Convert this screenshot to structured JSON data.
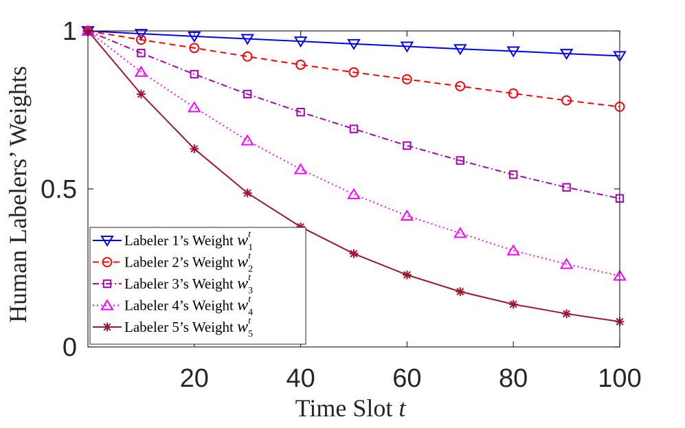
{
  "chart_data": {
    "type": "line",
    "xlabel": "Time Slot",
    "xlabel_var": "t",
    "ylabel": "Human Labelers’ Weights",
    "xlim": [
      0,
      100
    ],
    "ylim": [
      0,
      1
    ],
    "xticks": [
      20,
      40,
      60,
      80,
      100
    ],
    "xtick_labels": [
      "20",
      "40",
      "60",
      "80",
      "100"
    ],
    "yticks": [
      0,
      0.5,
      1
    ],
    "ytick_labels": [
      "0",
      "0.5",
      "1"
    ],
    "grid": false,
    "legend_position": "bottom-left",
    "x": [
      0,
      10,
      20,
      30,
      40,
      50,
      60,
      70,
      80,
      90,
      100
    ],
    "series": [
      {
        "name": "Labeler 1’s Weight",
        "symbol": "w",
        "subscript": "1",
        "superscript": "t",
        "color": "#0000ff",
        "dash": "solid",
        "marker": "triangle-down",
        "values": [
          1.0,
          0.991,
          0.983,
          0.975,
          0.967,
          0.959,
          0.951,
          0.943,
          0.936,
          0.928,
          0.921
        ]
      },
      {
        "name": "Labeler 2’s Weight",
        "symbol": "w",
        "subscript": "2",
        "superscript": "t",
        "color": "#ff0000",
        "dash": "dashed",
        "marker": "circle",
        "values": [
          1.0,
          0.972,
          0.946,
          0.919,
          0.893,
          0.869,
          0.847,
          0.825,
          0.802,
          0.78,
          0.76
        ]
      },
      {
        "name": "Labeler 3’s Weight",
        "symbol": "w",
        "subscript": "3",
        "superscript": "t",
        "color": "#b000b0",
        "dash": "dashdot",
        "marker": "square",
        "values": [
          1.0,
          0.93,
          0.863,
          0.8,
          0.743,
          0.69,
          0.637,
          0.59,
          0.545,
          0.505,
          0.47
        ]
      },
      {
        "name": "Labeler 4’s Weight",
        "symbol": "w",
        "subscript": "4",
        "superscript": "t",
        "color": "#ff00ff",
        "dash": "dotted",
        "marker": "triangle-up",
        "values": [
          1.0,
          0.87,
          0.758,
          0.653,
          0.562,
          0.483,
          0.415,
          0.36,
          0.305,
          0.262,
          0.225
        ]
      },
      {
        "name": "Labeler 5’s Weight",
        "symbol": "w",
        "subscript": "5",
        "superscript": "t",
        "color": "#a2142f",
        "dash": "solid",
        "marker": "asterisk",
        "values": [
          1.0,
          0.8,
          0.627,
          0.487,
          0.38,
          0.295,
          0.228,
          0.175,
          0.135,
          0.105,
          0.08
        ]
      }
    ]
  }
}
